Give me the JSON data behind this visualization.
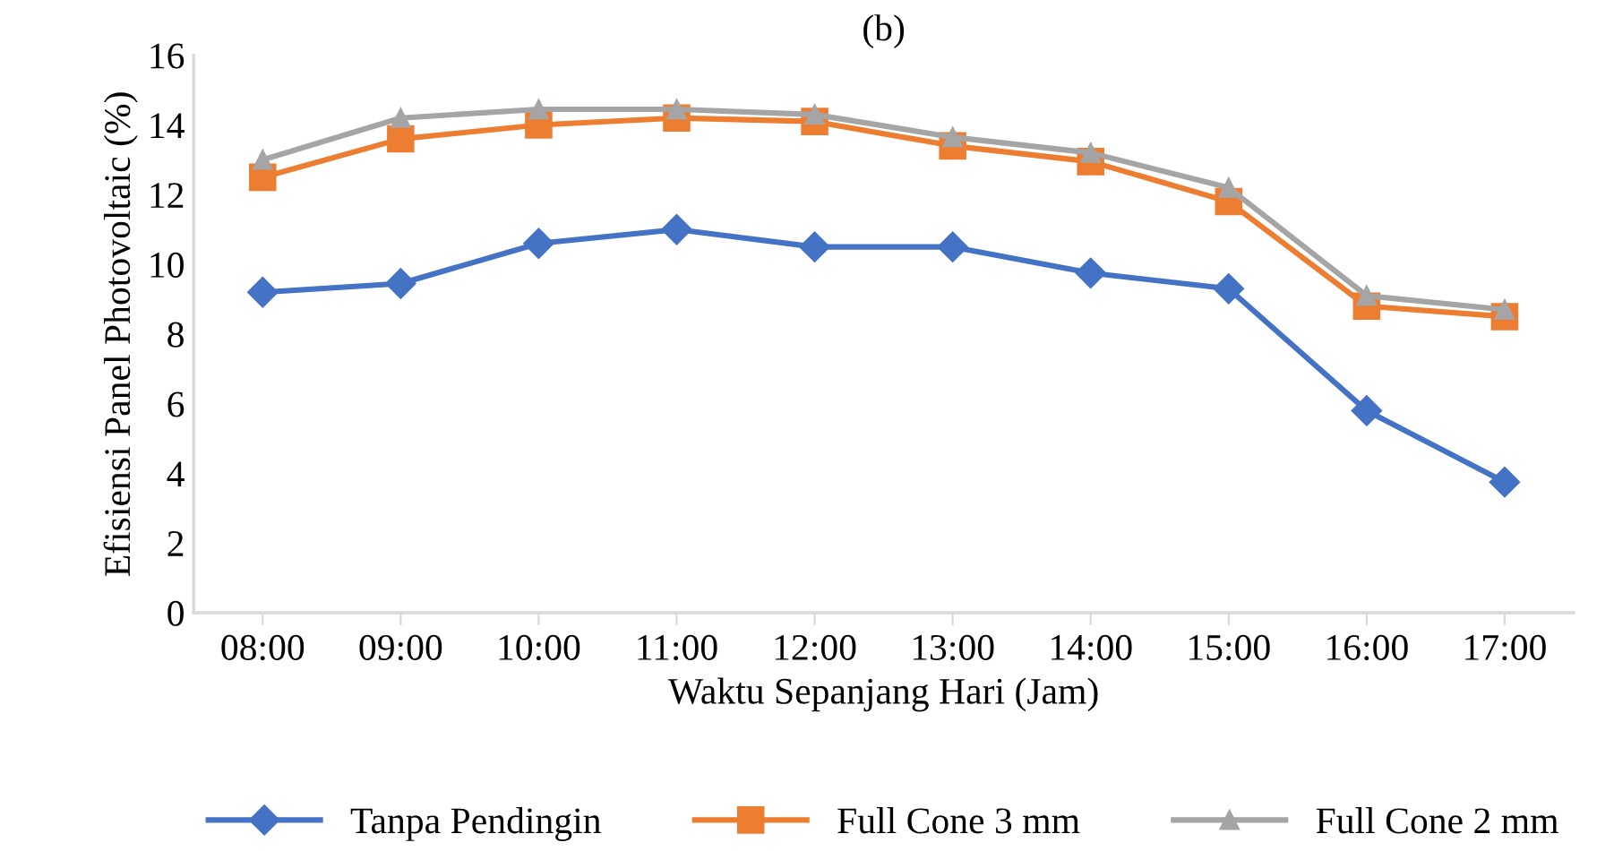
{
  "chart_data": {
    "type": "line",
    "title": "(b)",
    "xlabel": "Waktu Sepanjang Hari (Jam)",
    "ylabel": "Efisiensi Panel Photovoltaic (%)",
    "categories": [
      "08:00",
      "09:00",
      "10:00",
      "11:00",
      "12:00",
      "13:00",
      "14:00",
      "15:00",
      "16:00",
      "17:00"
    ],
    "series": [
      {
        "name": "Tanpa Pendingin",
        "color": "#4472c4",
        "marker": "diamond",
        "values": [
          9.2,
          9.45,
          10.6,
          11.0,
          10.5,
          10.5,
          9.75,
          9.3,
          5.8,
          3.75
        ]
      },
      {
        "name": "Full Cone 3 mm",
        "color": "#ed7d31",
        "marker": "square",
        "values": [
          12.5,
          13.6,
          14.0,
          14.2,
          14.1,
          13.4,
          12.95,
          11.8,
          8.8,
          8.5
        ]
      },
      {
        "name": "Full Cone 2 mm",
        "color": "#a5a5a5",
        "marker": "triangle",
        "values": [
          13.0,
          14.2,
          14.45,
          14.45,
          14.3,
          13.65,
          13.2,
          12.2,
          9.1,
          8.7
        ]
      }
    ],
    "ylim": [
      0,
      16
    ],
    "yticks": [
      0,
      2,
      4,
      6,
      8,
      10,
      12,
      14,
      16
    ],
    "grid": false,
    "legend": "bottom",
    "line_style": "solid"
  }
}
